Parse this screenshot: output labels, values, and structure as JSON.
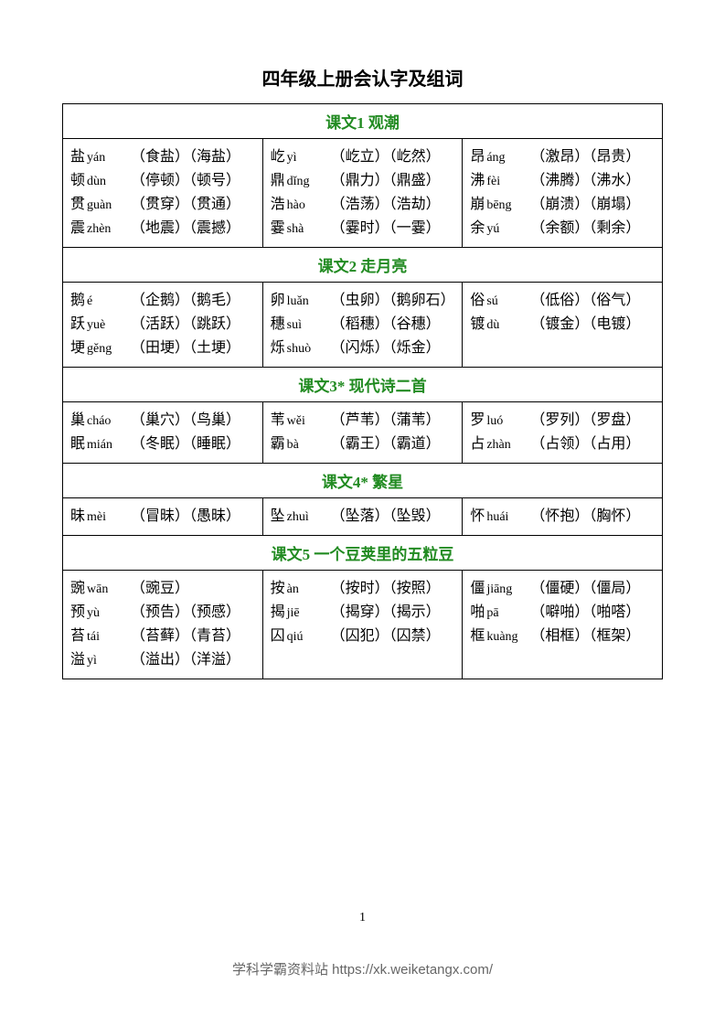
{
  "title": "四年级上册会认字及组词",
  "title_color": "#000000",
  "header_color": "#228B22",
  "border_color": "#000000",
  "background_color": "#ffffff",
  "page_number": "1",
  "footer": "学科学霸资料站 https://xk.weiketangx.com/",
  "sections": [
    {
      "header": "课文1 观潮",
      "cols": [
        [
          {
            "char": "盐",
            "py": "yán",
            "words": "（食盐）（海盐）"
          },
          {
            "char": "顿",
            "py": "dùn",
            "words": "（停顿）（顿号）"
          },
          {
            "char": "贯",
            "py": "guàn",
            "words": "（贯穿）（贯通）"
          },
          {
            "char": "震",
            "py": "zhèn",
            "words": "（地震）（震撼）"
          }
        ],
        [
          {
            "char": "屹",
            "py": "yì",
            "words": "（屹立）（屹然）"
          },
          {
            "char": "鼎",
            "py": "dǐng",
            "words": "（鼎力）（鼎盛）"
          },
          {
            "char": "浩",
            "py": "hào",
            "words": "（浩荡）（浩劫）"
          },
          {
            "char": "霎",
            "py": "shà",
            "words": "（霎时）（一霎）"
          }
        ],
        [
          {
            "char": "昂",
            "py": "áng",
            "words": "（激昂）（昂贵）"
          },
          {
            "char": "沸",
            "py": "fèi",
            "words": "（沸腾）（沸水）"
          },
          {
            "char": "崩",
            "py": "bēng",
            "words": "（崩溃）（崩塌）"
          },
          {
            "char": "余",
            "py": "yú",
            "words": "（余额）（剩余）"
          }
        ]
      ]
    },
    {
      "header": "课文2 走月亮",
      "cols": [
        [
          {
            "char": "鹅",
            "py": "é",
            "words": "（企鹅）（鹅毛）"
          },
          {
            "char": "跃",
            "py": "yuè",
            "words": "（活跃）（跳跃）"
          },
          {
            "char": "埂",
            "py": "gěng",
            "words": "（田埂）（土埂）"
          }
        ],
        [
          {
            "char": "卵",
            "py": "luǎn",
            "words": "（虫卵）（鹅卵石）"
          },
          {
            "char": "穗",
            "py": "suì",
            "words": "（稻穗）（谷穗）"
          },
          {
            "char": "烁",
            "py": "shuò",
            "words": "（闪烁）（烁金）"
          }
        ],
        [
          {
            "char": "俗",
            "py": "sú",
            "words": "（低俗）（俗气）"
          },
          {
            "char": "镀",
            "py": "dù",
            "words": "（镀金）（电镀）"
          }
        ]
      ]
    },
    {
      "header": "课文3* 现代诗二首",
      "cols": [
        [
          {
            "char": "巢",
            "py": "cháo",
            "words": "（巢穴）（鸟巢）"
          },
          {
            "char": "眠",
            "py": "mián",
            "words": "（冬眠）（睡眠）"
          }
        ],
        [
          {
            "char": "苇",
            "py": "wěi",
            "words": "（芦苇）（蒲苇）"
          },
          {
            "char": "霸",
            "py": "bà",
            "words": "（霸王）（霸道）"
          }
        ],
        [
          {
            "char": "罗",
            "py": "luó",
            "words": "（罗列）（罗盘）"
          },
          {
            "char": "占",
            "py": "zhàn",
            "words": "（占领）（占用）"
          }
        ]
      ]
    },
    {
      "header": "课文4* 繁星",
      "cols": [
        [
          {
            "char": "昧",
            "py": "mèi",
            "words": "（冒昧）（愚昧）"
          }
        ],
        [
          {
            "char": "坠",
            "py": "zhuì",
            "words": "（坠落）（坠毁）"
          }
        ],
        [
          {
            "char": "怀",
            "py": "huái",
            "words": "（怀抱）（胸怀）"
          }
        ]
      ]
    },
    {
      "header": "课文5 一个豆荚里的五粒豆",
      "cols": [
        [
          {
            "char": "豌",
            "py": "wān",
            "words": "（豌豆）"
          },
          {
            "char": "预",
            "py": "yù",
            "words": "（预告）（预感）"
          },
          {
            "char": "苔",
            "py": "tái",
            "words": "（苔藓）（青苔）"
          },
          {
            "char": "溢",
            "py": "yì",
            "words": "（溢出）（洋溢）"
          }
        ],
        [
          {
            "char": "按",
            "py": "àn",
            "words": "（按时）（按照）"
          },
          {
            "char": "揭",
            "py": "jiē",
            "words": "（揭穿）（揭示）"
          },
          {
            "char": "囚",
            "py": "qiú",
            "words": "（囚犯）（囚禁）"
          }
        ],
        [
          {
            "char": "僵",
            "py": "jiāng",
            "words": "（僵硬）（僵局）"
          },
          {
            "char": "啪",
            "py": "pā",
            "words": "（噼啪）（啪嗒）"
          },
          {
            "char": "框",
            "py": "kuàng",
            "words": "（相框）（框架）"
          }
        ]
      ]
    }
  ]
}
